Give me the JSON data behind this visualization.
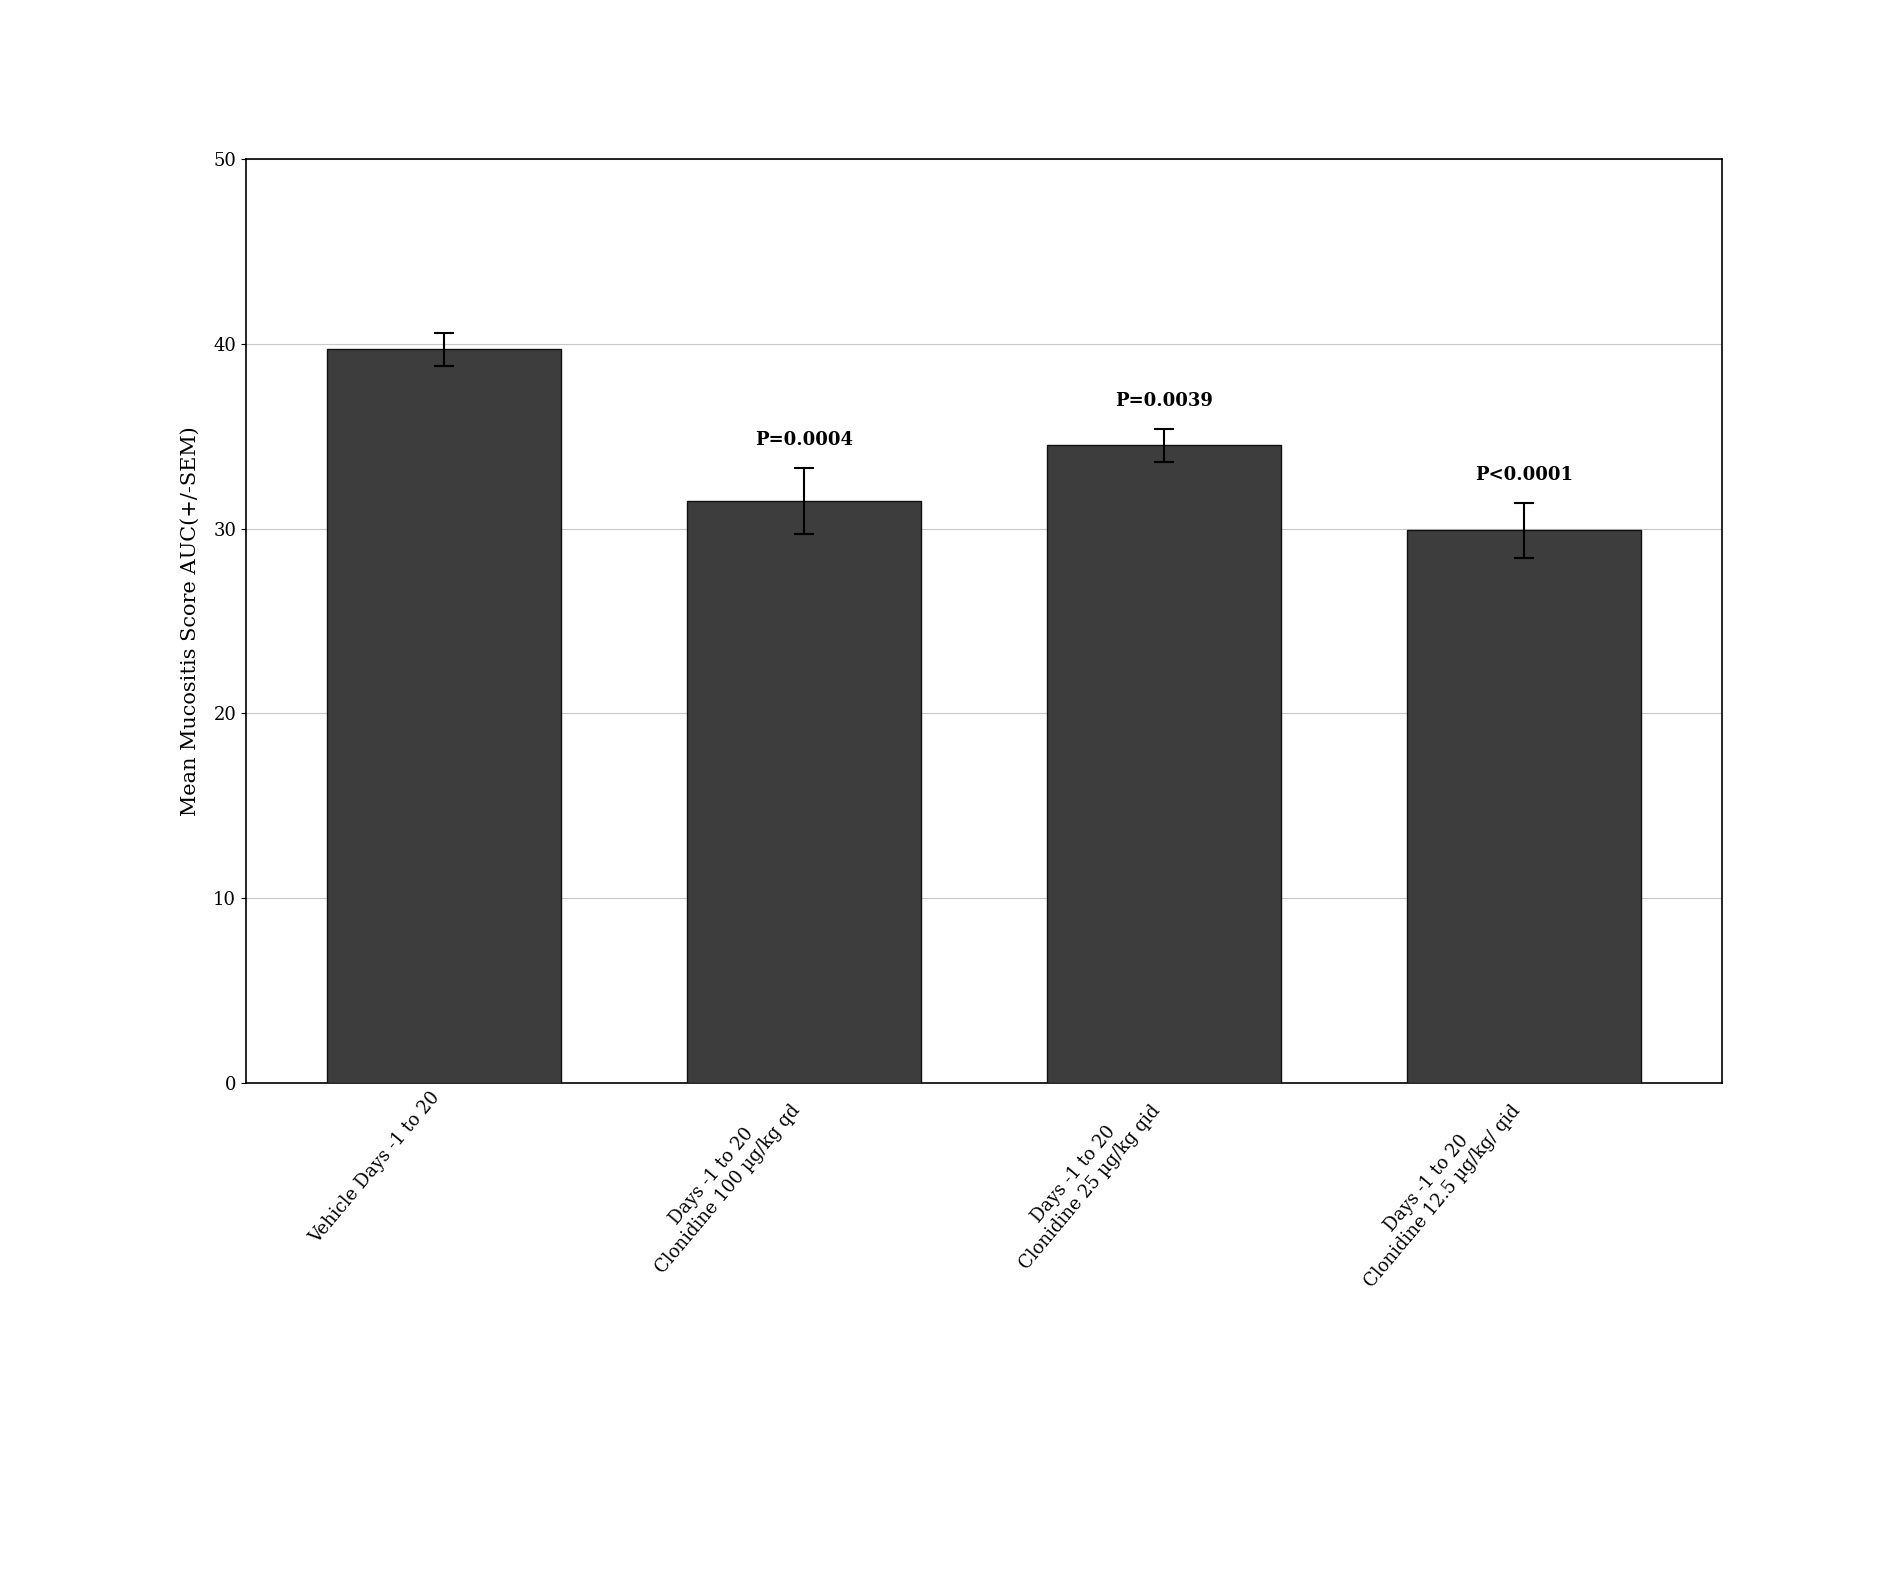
{
  "categories": [
    "Vehicle Days -1 to 20",
    "Days -1 to 20\nClonidine 100 µg/kg qd",
    "Days -1 to 20\nClonidine 25 µg/kg qid",
    "Days -1 to 20\nClonidine 12.5 µg/kg/ qid"
  ],
  "values": [
    39.7,
    31.5,
    34.5,
    29.9
  ],
  "errors": [
    0.9,
    1.8,
    0.9,
    1.5
  ],
  "p_values": [
    "",
    "P=0.0004",
    "P=0.0039",
    "P<0.0001"
  ],
  "bar_color": "#3d3d3d",
  "bar_edge_color": "#111111",
  "ylabel": "Mean Mucositis Score AUC(+/-SEM)",
  "ylim": [
    0,
    50
  ],
  "yticks": [
    0,
    10,
    20,
    30,
    40,
    50
  ],
  "background_color": "#ffffff",
  "grid_color": "#c8c8c8",
  "ylabel_fontsize": 15,
  "tick_fontsize": 13,
  "annotation_fontsize": 13,
  "bar_width": 0.65,
  "figure_width": 18.92,
  "figure_height": 15.92,
  "dpi": 100
}
